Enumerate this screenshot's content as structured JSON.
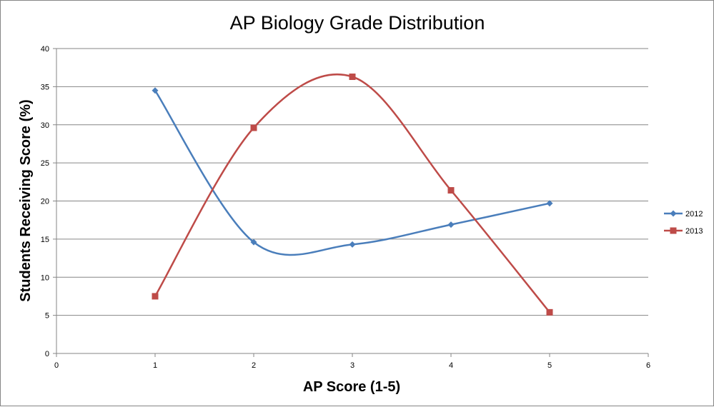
{
  "chart_data": {
    "type": "line",
    "title": "AP Biology Grade Distribution",
    "xlabel": "AP Score (1-5)",
    "ylabel": "Students Receiving Score (%)",
    "xlim": [
      0,
      6
    ],
    "ylim": [
      0,
      40
    ],
    "x_ticks": [
      "0",
      "1",
      "2",
      "3",
      "4",
      "5",
      "6"
    ],
    "y_ticks": [
      "0",
      "5",
      "10",
      "15",
      "20",
      "25",
      "30",
      "35",
      "40"
    ],
    "grid": "horizontal",
    "smooth": true,
    "legend_position": "right",
    "x": [
      1,
      2,
      3,
      4,
      5
    ],
    "series": [
      {
        "name": "2012",
        "marker": "diamond",
        "color": "#4A7EBB",
        "values": [
          34.5,
          14.6,
          14.3,
          16.9,
          19.7
        ]
      },
      {
        "name": "2013",
        "marker": "square",
        "color": "#BE4B48",
        "values": [
          7.5,
          29.6,
          36.3,
          21.4,
          5.4
        ]
      }
    ]
  }
}
